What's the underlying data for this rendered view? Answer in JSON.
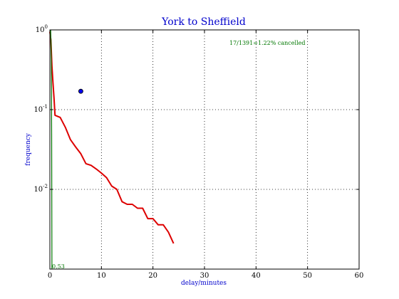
{
  "chart_data": {
    "type": "line",
    "title": "York to Sheffield",
    "xlabel": "delay/minutes",
    "ylabel": "frequency",
    "xlim": [
      0,
      60
    ],
    "ylim": [
      0.001,
      1
    ],
    "yscale": "log",
    "grid": true,
    "x_ticks": [
      0,
      10,
      20,
      30,
      40,
      50,
      60
    ],
    "y_ticks": [
      {
        "value": 1,
        "mantissa": "10",
        "exponent": "0"
      },
      {
        "value": 0.1,
        "mantissa": "10",
        "exponent": "-1"
      },
      {
        "value": 0.01,
        "mantissa": "10",
        "exponent": "-2"
      }
    ],
    "series": [
      {
        "color": "#dd0000",
        "x": [
          0,
          0.2,
          0.4,
          0.6,
          0.8,
          1,
          2,
          3,
          4,
          5,
          6,
          7,
          8,
          9,
          10,
          11,
          12,
          13,
          14,
          15,
          16,
          17,
          18,
          19,
          20,
          21,
          22,
          23,
          24
        ],
        "y": [
          0.95,
          0.75,
          0.35,
          0.22,
          0.14,
          0.085,
          0.08,
          0.06,
          0.042,
          0.034,
          0.028,
          0.021,
          0.02,
          0.018,
          0.016,
          0.014,
          0.011,
          0.01,
          0.007,
          0.0065,
          0.0065,
          0.0058,
          0.0058,
          0.0043,
          0.0043,
          0.0036,
          0.0036,
          0.0029,
          0.0021
        ]
      },
      {
        "color": "#007700",
        "x": [
          0.15,
          0.25,
          0.3,
          0.35,
          0.4
        ],
        "y": [
          1,
          0.6,
          0.2,
          0.05,
          0.001
        ]
      }
    ],
    "points": [
      {
        "x": 6,
        "y": 0.17,
        "color": "#0000ee"
      }
    ],
    "annotations": {
      "cancelled": "17/1391=1.22% cancelled",
      "median": "0.53"
    }
  }
}
